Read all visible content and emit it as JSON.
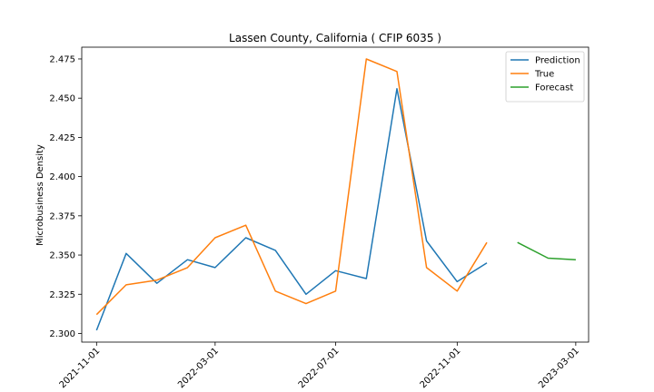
{
  "chart_data": {
    "type": "line",
    "title": "Lassen County, California ( CFIP 6035 )",
    "xlabel": "",
    "ylabel": "Microbusiness Density",
    "ylim": [
      2.2945,
      2.4825
    ],
    "yticks": [
      2.3,
      2.325,
      2.35,
      2.375,
      2.4,
      2.425,
      2.45,
      2.475
    ],
    "ytick_labels": [
      "2.300",
      "2.325",
      "2.350",
      "2.375",
      "2.400",
      "2.425",
      "2.450",
      "2.475"
    ],
    "xlim": [
      "2021-10-17",
      "2023-03-14"
    ],
    "xticks": [
      "2021-11-01",
      "2022-03-01",
      "2022-07-01",
      "2022-11-01",
      "2023-03-01"
    ],
    "grid": false,
    "legend_position": "upper right",
    "series": [
      {
        "name": "Prediction",
        "color": "#1f77b4",
        "x": [
          "2021-11-01",
          "2021-12-01",
          "2022-01-01",
          "2022-02-01",
          "2022-03-01",
          "2022-04-01",
          "2022-05-01",
          "2022-06-01",
          "2022-07-01",
          "2022-08-01",
          "2022-09-01",
          "2022-10-01",
          "2022-11-01",
          "2022-12-01"
        ],
        "values": [
          2.302,
          2.351,
          2.332,
          2.347,
          2.342,
          2.361,
          2.353,
          2.325,
          2.34,
          2.335,
          2.456,
          2.359,
          2.333,
          2.345
        ]
      },
      {
        "name": "True",
        "color": "#ff7f0e",
        "x": [
          "2021-11-01",
          "2021-12-01",
          "2022-01-01",
          "2022-02-01",
          "2022-03-01",
          "2022-04-01",
          "2022-05-01",
          "2022-06-01",
          "2022-07-01",
          "2022-08-01",
          "2022-09-01",
          "2022-10-01",
          "2022-11-01",
          "2022-12-01"
        ],
        "values": [
          2.312,
          2.331,
          2.334,
          2.342,
          2.361,
          2.369,
          2.327,
          2.319,
          2.327,
          2.475,
          2.467,
          2.342,
          2.327,
          2.358
        ]
      },
      {
        "name": "Forecast",
        "color": "#2ca02c",
        "x": [
          "2023-01-01",
          "2023-02-01",
          "2023-03-01"
        ],
        "values": [
          2.358,
          2.348,
          2.347
        ]
      }
    ]
  }
}
